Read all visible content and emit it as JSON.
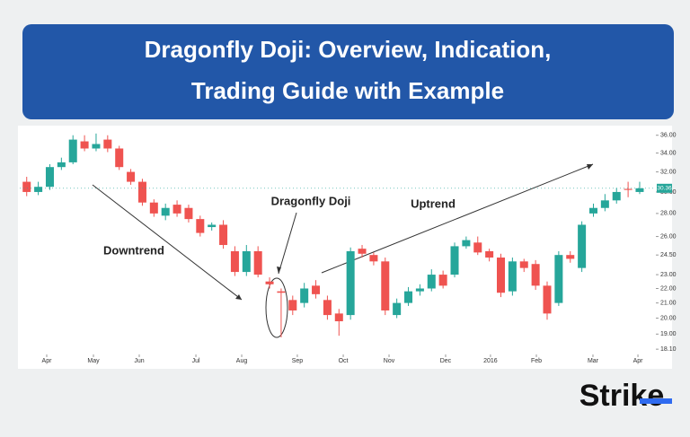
{
  "header": {
    "title_lines": [
      "Dragonfly Doji: Overview, Indication,",
      "Trading Guide with Example"
    ]
  },
  "brand": "Strike",
  "chart_data": {
    "type": "candlestick",
    "series": [
      {
        "name": null,
        "up_color": "#26a69a",
        "down_color": "#ef5350",
        "open": [
          31,
          30,
          30.5,
          32.5,
          33,
          35.3,
          34.5,
          35.5,
          34.5,
          32,
          31,
          29,
          27.8,
          28.8,
          28.5,
          27.5,
          26.8,
          27,
          24.8,
          23.2,
          24.8,
          22.5,
          21.8,
          21.2,
          21,
          22.2,
          21.2,
          20.3,
          20.2,
          25,
          24.5,
          24,
          20.2,
          21,
          21.8,
          22,
          23,
          23,
          25.2,
          25.5,
          24.8,
          24.3,
          21.8,
          24,
          23.8,
          22.2,
          21,
          24.5,
          23.5,
          28,
          28.5,
          29.2,
          30.3,
          30
        ],
        "high": [
          31.5,
          31,
          32.8,
          33.5,
          36,
          36,
          36.2,
          36,
          34.8,
          32.3,
          31.3,
          29.3,
          28.9,
          29.2,
          28.8,
          27.8,
          27.2,
          27.4,
          25.2,
          25.3,
          25.2,
          22.8,
          22,
          21.5,
          22.4,
          22.6,
          21.5,
          20.6,
          25.1,
          25.3,
          24.7,
          24.3,
          21.3,
          22.1,
          22.3,
          23.4,
          23.3,
          25.5,
          26,
          26,
          25,
          24.6,
          24.3,
          24.2,
          24.1,
          22.5,
          24.8,
          24.8,
          27.3,
          28.9,
          29.8,
          30.4,
          31,
          31
        ],
        "low": [
          29.6,
          29.7,
          30.2,
          32.2,
          32.8,
          34.2,
          34.2,
          34.1,
          32.2,
          30.7,
          28.7,
          27.7,
          27.4,
          27.7,
          27.2,
          26,
          26.5,
          25,
          22.9,
          22.9,
          22.8,
          22,
          18.8,
          20.2,
          20.7,
          21.3,
          19.9,
          18.9,
          19.9,
          24.3,
          23.7,
          20.2,
          20,
          20.8,
          21.5,
          21.8,
          22,
          22.8,
          25,
          24.5,
          24,
          21.4,
          21.5,
          23.2,
          21.9,
          19.9,
          20.8,
          23.9,
          23.2,
          27.7,
          28.2,
          28.9,
          29.5,
          29.8
        ],
        "close": [
          30,
          30.5,
          32.5,
          33,
          35.5,
          34.5,
          35,
          34.5,
          32.5,
          31,
          29,
          28,
          28.5,
          28,
          27.5,
          26.3,
          27,
          25.3,
          23.2,
          24.8,
          23,
          22.3,
          21.7,
          20.5,
          22,
          21.6,
          20.2,
          19.8,
          24.8,
          24.6,
          24,
          20.5,
          21,
          21.8,
          22,
          23,
          22.2,
          25.2,
          25.7,
          24.7,
          24.3,
          21.7,
          24,
          23.5,
          22.2,
          20.3,
          24.5,
          24.2,
          27,
          28.5,
          29.2,
          30,
          30.2,
          30.36
        ]
      }
    ],
    "last_price": 30.36,
    "xlim": [
      -0.6,
      54.4
    ],
    "xticks": [
      {
        "value": 1.73,
        "label": "Apr"
      },
      {
        "value": 5.77,
        "label": "May"
      },
      {
        "value": 9.73,
        "label": "Jun"
      },
      {
        "value": 14.63,
        "label": "Jul"
      },
      {
        "value": 18.59,
        "label": "Aug"
      },
      {
        "value": 23.4,
        "label": "Sep"
      },
      {
        "value": 27.37,
        "label": "Oct"
      },
      {
        "value": 31.33,
        "label": "Nov"
      },
      {
        "value": 36.22,
        "label": "Dec"
      },
      {
        "value": 40.1,
        "label": "2016"
      },
      {
        "value": 44.07,
        "label": "Feb"
      },
      {
        "value": 48.96,
        "label": "Mar"
      },
      {
        "value": 52.85,
        "label": "Apr"
      }
    ],
    "ylim": [
      17.9,
      36.6
    ],
    "log_scale": true,
    "yticks": [
      {
        "value": 36,
        "label": "36.00"
      },
      {
        "value": 34,
        "label": "34.00"
      },
      {
        "value": 32,
        "label": "32.00"
      },
      {
        "value": 30,
        "label": "30.00"
      },
      {
        "value": 28,
        "label": "28.00"
      },
      {
        "value": 26,
        "label": "26.00"
      },
      {
        "value": 24.5,
        "label": "24.50"
      },
      {
        "value": 23,
        "label": "23.00"
      },
      {
        "value": 22,
        "label": "22.00"
      },
      {
        "value": 21,
        "label": "21.00"
      },
      {
        "value": 20,
        "label": "20.00"
      },
      {
        "value": 19,
        "label": "19.00"
      },
      {
        "value": 18.1,
        "label": "18.10"
      }
    ],
    "annotations": [
      "Downtrend",
      "Dragonfly Doji",
      "Uptrend"
    ]
  }
}
